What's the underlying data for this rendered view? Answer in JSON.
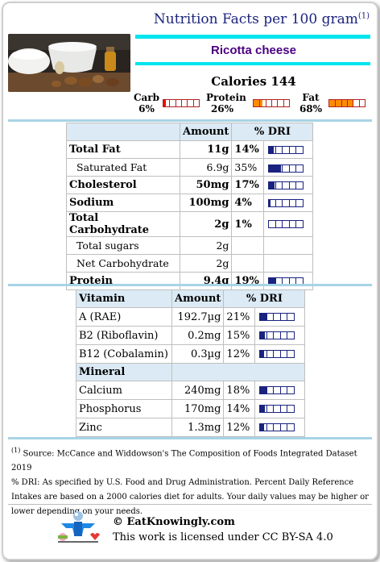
{
  "header": {
    "title": "Nutrition Facts per 100 gram",
    "footnote_mark": "(1)"
  },
  "food": {
    "name": "Ricotta cheese"
  },
  "calories": {
    "text": "Calories 144"
  },
  "macros": [
    {
      "label": "Carb",
      "pct_text": "6%",
      "fraction": 0.06,
      "color": "#ff0000"
    },
    {
      "label": "Protein",
      "pct_text": "26%",
      "fraction": 0.26,
      "color": "#ff8c00"
    },
    {
      "label": "Fat",
      "pct_text": "68%",
      "fraction": 0.68,
      "color": "#ff8c00"
    }
  ],
  "nutrients": {
    "headers": {
      "name": "",
      "amount": "Amount",
      "dri": "% DRI"
    },
    "rows": [
      {
        "name": "Total Fat",
        "amount": "11g",
        "dri": "14%",
        "fraction": 0.14,
        "bold": true,
        "indent": false
      },
      {
        "name": "Saturated Fat",
        "amount": "6.9g",
        "dri": "35%",
        "fraction": 0.35,
        "bold": false,
        "indent": true
      },
      {
        "name": "Cholesterol",
        "amount": "50mg",
        "dri": "17%",
        "fraction": 0.17,
        "bold": true,
        "indent": false
      },
      {
        "name": "Sodium",
        "amount": "100mg",
        "dri": "4%",
        "fraction": 0.04,
        "bold": true,
        "indent": false
      },
      {
        "name": "Total Carbohydrate",
        "amount": "2g",
        "dri": "1%",
        "fraction": 0.01,
        "bold": true,
        "indent": false
      },
      {
        "name": "Total sugars",
        "amount": "2g",
        "dri": "",
        "fraction": null,
        "bold": false,
        "indent": true
      },
      {
        "name": "Net Carbohydrate",
        "amount": "2g",
        "dri": "",
        "fraction": null,
        "bold": false,
        "indent": true
      },
      {
        "name": "Protein",
        "amount": "9.4g",
        "dri": "19%",
        "fraction": 0.19,
        "bold": true,
        "indent": false
      }
    ]
  },
  "vitamins": {
    "headers": {
      "name": "Vitamin",
      "amount": "Amount",
      "dri": "% DRI"
    },
    "rows": [
      {
        "name": "A (RAE)",
        "amount": "192.7µg",
        "dri": "21%",
        "fraction": 0.21
      },
      {
        "name": "B2 (Riboflavin)",
        "amount": "0.2mg",
        "dri": "15%",
        "fraction": 0.15
      },
      {
        "name": "B12 (Cobalamin)",
        "amount": "0.3µg",
        "dri": "12%",
        "fraction": 0.12
      }
    ],
    "mineral_header": "Mineral",
    "minerals": [
      {
        "name": "Calcium",
        "amount": "240mg",
        "dri": "18%",
        "fraction": 0.18
      },
      {
        "name": "Phosphorus",
        "amount": "170mg",
        "dri": "14%",
        "fraction": 0.14
      },
      {
        "name": "Zinc",
        "amount": "1.3mg",
        "dri": "12%",
        "fraction": 0.12
      }
    ]
  },
  "footer": {
    "source_mark": "(1)",
    "source": " Source: McCance and Widdowson's The Composition of Foods Integrated Dataset 2019",
    "dri_note": "% DRI: As specified by U.S. Food and Drug Administration. Percent Daily Reference Intakes are based on a 2000 calories diet for adults. Your daily values may be higher or lower depending on your needs.",
    "site": "© EatKnowingly.com",
    "license": "This work is licensed under CC BY-SA 4.0"
  }
}
